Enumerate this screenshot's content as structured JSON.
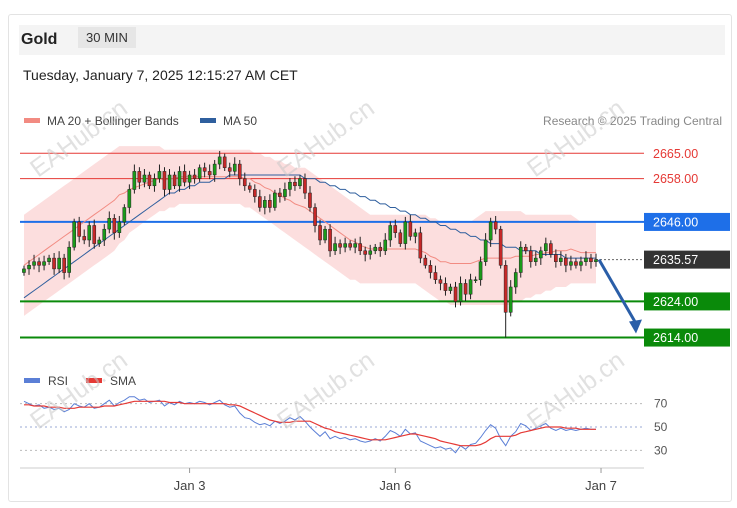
{
  "header": {
    "title": "Gold",
    "timeframe": "30 MIN"
  },
  "timestamp": "Tuesday, January 7, 2025 12:15:27 AM CET",
  "credit": "Research © 2025 Trading Central",
  "watermark": "EAHub.cn",
  "chart_data": {
    "type": "candlestick",
    "y_range": [
      2610,
      2672
    ],
    "legend": [
      {
        "name": "MA 20 + Bollinger Bands",
        "color": "#f28b82"
      },
      {
        "name": "MA 50",
        "color": "#2f5f9e"
      }
    ],
    "levels": [
      {
        "label": "2665.00",
        "value": 2665,
        "kind": "resistance",
        "color": "#e53935"
      },
      {
        "label": "2658.00",
        "value": 2658,
        "kind": "resistance",
        "color": "#e53935"
      },
      {
        "label": "2646.00",
        "value": 2646,
        "kind": "pivot",
        "color": "#1e6fe8"
      },
      {
        "label": "2635.57",
        "value": 2635.57,
        "kind": "last",
        "color": "#333333"
      },
      {
        "label": "2624.00",
        "value": 2624,
        "kind": "support",
        "color": "#0a8a0a"
      },
      {
        "label": "2614.00",
        "value": 2614,
        "kind": "support",
        "color": "#0a8a0a"
      }
    ],
    "x_ticks": [
      {
        "label": "Jan 3",
        "idx": 33
      },
      {
        "label": "Jan 6",
        "idx": 74
      },
      {
        "label": "Jan 7",
        "idx": 115
      }
    ],
    "close": [
      2633,
      2634,
      2635,
      2634,
      2635,
      2636,
      2633,
      2636,
      2632,
      2639,
      2646,
      2642,
      2641,
      2645,
      2640,
      2641,
      2644,
      2647,
      2643,
      2646,
      2650,
      2655,
      2660,
      2657,
      2659,
      2656,
      2658,
      2660,
      2655,
      2659,
      2656,
      2660,
      2657,
      2659,
      2658,
      2661,
      2660,
      2659,
      2662,
      2664,
      2661,
      2660,
      2662,
      2658,
      2656,
      2655,
      2653,
      2650,
      2652,
      2650,
      2654,
      2653,
      2655,
      2657,
      2656,
      2658,
      2654,
      2650,
      2645,
      2641,
      2644,
      2638,
      2640,
      2639,
      2640,
      2639,
      2640,
      2638,
      2637,
      2638,
      2639,
      2638,
      2641,
      2645,
      2643,
      2640,
      2646,
      2642,
      2643,
      2636,
      2634,
      2632,
      2630,
      2629,
      2627,
      2628,
      2624,
      2629,
      2626,
      2630,
      2630,
      2635,
      2641,
      2646,
      2644,
      2634,
      2621,
      2628,
      2632,
      2639,
      2638,
      2635,
      2636,
      2638,
      2640,
      2637,
      2635,
      2636,
      2634,
      2635,
      2634,
      2635,
      2636,
      2635,
      2635.57
    ],
    "bb_upper": [
      2648,
      2649,
      2650,
      2651,
      2652,
      2653,
      2654,
      2655,
      2656,
      2657,
      2658,
      2659,
      2660,
      2661,
      2662,
      2663,
      2664,
      2665,
      2666,
      2667,
      2667,
      2667,
      2667,
      2667,
      2667,
      2667,
      2667,
      2667,
      2666,
      2666,
      2666,
      2666,
      2666,
      2666,
      2666,
      2666,
      2666,
      2666,
      2666,
      2666,
      2666,
      2666,
      2666,
      2666,
      2666,
      2666,
      2665,
      2665,
      2664,
      2664,
      2663,
      2663,
      2662,
      2662,
      2661,
      2661,
      2661,
      2660,
      2659,
      2658,
      2657,
      2656,
      2655,
      2654,
      2653,
      2652,
      2651,
      2650,
      2649,
      2648,
      2648,
      2648,
      2648,
      2648,
      2648,
      2648,
      2648,
      2648,
      2648,
      2648,
      2648,
      2647,
      2647,
      2646,
      2646,
      2646,
      2646,
      2646,
      2646,
      2646,
      2647,
      2648,
      2649,
      2649,
      2649,
      2649,
      2649,
      2649,
      2649,
      2649,
      2648,
      2648,
      2648,
      2648,
      2648,
      2648,
      2648,
      2648,
      2648,
      2648,
      2647,
      2646,
      2646,
      2646,
      2646
    ],
    "bb_lower": [
      2620,
      2621,
      2622,
      2623,
      2624,
      2625,
      2626,
      2627,
      2628,
      2629,
      2630,
      2631,
      2632,
      2633,
      2634,
      2635,
      2636,
      2637,
      2638,
      2640,
      2641,
      2643,
      2644,
      2645,
      2646,
      2647,
      2648,
      2649,
      2649,
      2650,
      2650,
      2651,
      2651,
      2651,
      2651,
      2651,
      2651,
      2651,
      2651,
      2651,
      2651,
      2651,
      2651,
      2651,
      2650,
      2650,
      2649,
      2648,
      2647,
      2646,
      2645,
      2644,
      2643,
      2642,
      2641,
      2640,
      2639,
      2638,
      2637,
      2636,
      2635,
      2634,
      2633,
      2632,
      2631,
      2630,
      2630,
      2629,
      2629,
      2629,
      2629,
      2629,
      2629,
      2629,
      2629,
      2629,
      2629,
      2629,
      2629,
      2628,
      2627,
      2626,
      2625,
      2624,
      2624,
      2623,
      2623,
      2623,
      2623,
      2623,
      2623,
      2623,
      2623,
      2623,
      2623,
      2623,
      2623,
      2623,
      2624,
      2624,
      2625,
      2625,
      2626,
      2626,
      2627,
      2627,
      2628,
      2628,
      2628,
      2629,
      2629,
      2629,
      2629,
      2629,
      2629
    ],
    "ma50": [
      2625,
      2626,
      2627,
      2628,
      2629,
      2630,
      2631,
      2632,
      2633,
      2634,
      2635,
      2636,
      2637,
      2638,
      2639,
      2640,
      2641,
      2642,
      2643,
      2644,
      2645,
      2646,
      2647,
      2648,
      2649,
      2650,
      2651,
      2652,
      2653,
      2654,
      2654,
      2655,
      2655,
      2656,
      2656,
      2657,
      2657,
      2657,
      2658,
      2658,
      2658,
      2659,
      2659,
      2659,
      2659,
      2659,
      2659,
      2659,
      2659,
      2659,
      2659,
      2659,
      2659,
      2659,
      2659,
      2659,
      2658,
      2658,
      2658,
      2657,
      2657,
      2656,
      2656,
      2655,
      2655,
      2654,
      2654,
      2653,
      2653,
      2652,
      2652,
      2651,
      2651,
      2650,
      2650,
      2649,
      2649,
      2648,
      2648,
      2647,
      2647,
      2646,
      2646,
      2645,
      2645,
      2644,
      2644,
      2643,
      2643,
      2642,
      2642,
      2641,
      2641,
      2640,
      2640,
      2640,
      2639,
      2639,
      2639,
      2638,
      2638,
      2638,
      2638,
      2637,
      2637,
      2637,
      2637,
      2637,
      2636,
      2636,
      2636,
      2636,
      2636,
      2636,
      2636
    ],
    "forecast": {
      "from": 2635.57,
      "to": 2614
    },
    "rsi": {
      "legend": [
        {
          "name": "RSI",
          "color": "#5b7fd6"
        },
        {
          "name": "SMA",
          "color": "#e53935"
        }
      ],
      "ticks": [
        70,
        50,
        30
      ],
      "range": [
        20,
        80
      ],
      "rsi": [
        72,
        70,
        68,
        69,
        66,
        67,
        65,
        66,
        63,
        65,
        70,
        68,
        67,
        70,
        66,
        67,
        70,
        73,
        68,
        71,
        73,
        76,
        76,
        73,
        74,
        71,
        72,
        73,
        68,
        71,
        69,
        72,
        70,
        71,
        70,
        72,
        71,
        69,
        71,
        73,
        69,
        67,
        68,
        62,
        58,
        57,
        54,
        52,
        53,
        51,
        55,
        53,
        55,
        58,
        56,
        59,
        55,
        50,
        46,
        42,
        46,
        40,
        42,
        40,
        41,
        39,
        40,
        38,
        37,
        38,
        40,
        38,
        42,
        47,
        45,
        42,
        48,
        44,
        45,
        38,
        36,
        34,
        32,
        33,
        31,
        32,
        28,
        34,
        31,
        35,
        36,
        41,
        47,
        52,
        49,
        40,
        34,
        42,
        46,
        53,
        51,
        47,
        49,
        51,
        53,
        49,
        47,
        49,
        47,
        48,
        47,
        48,
        49,
        48,
        48
      ],
      "sma": [
        69,
        69,
        68,
        68,
        68,
        67,
        67,
        67,
        66,
        66,
        66,
        67,
        67,
        67,
        67,
        67,
        68,
        68,
        68,
        69,
        70,
        71,
        72,
        72,
        72,
        72,
        72,
        72,
        72,
        71,
        71,
        71,
        70,
        70,
        70,
        70,
        70,
        70,
        70,
        70,
        70,
        69,
        69,
        68,
        66,
        64,
        62,
        60,
        58,
        56,
        55,
        54,
        54,
        54,
        55,
        55,
        55,
        55,
        53,
        51,
        49,
        48,
        46,
        45,
        44,
        43,
        42,
        41,
        40,
        39,
        39,
        39,
        39,
        40,
        41,
        42,
        43,
        44,
        44,
        43,
        42,
        41,
        40,
        38,
        37,
        36,
        35,
        34,
        34,
        34,
        34,
        35,
        37,
        40,
        42,
        42,
        42,
        42,
        43,
        45,
        46,
        47,
        48,
        49,
        50,
        50,
        50,
        50,
        49,
        49,
        49,
        48,
        48,
        48,
        48
      ]
    }
  }
}
